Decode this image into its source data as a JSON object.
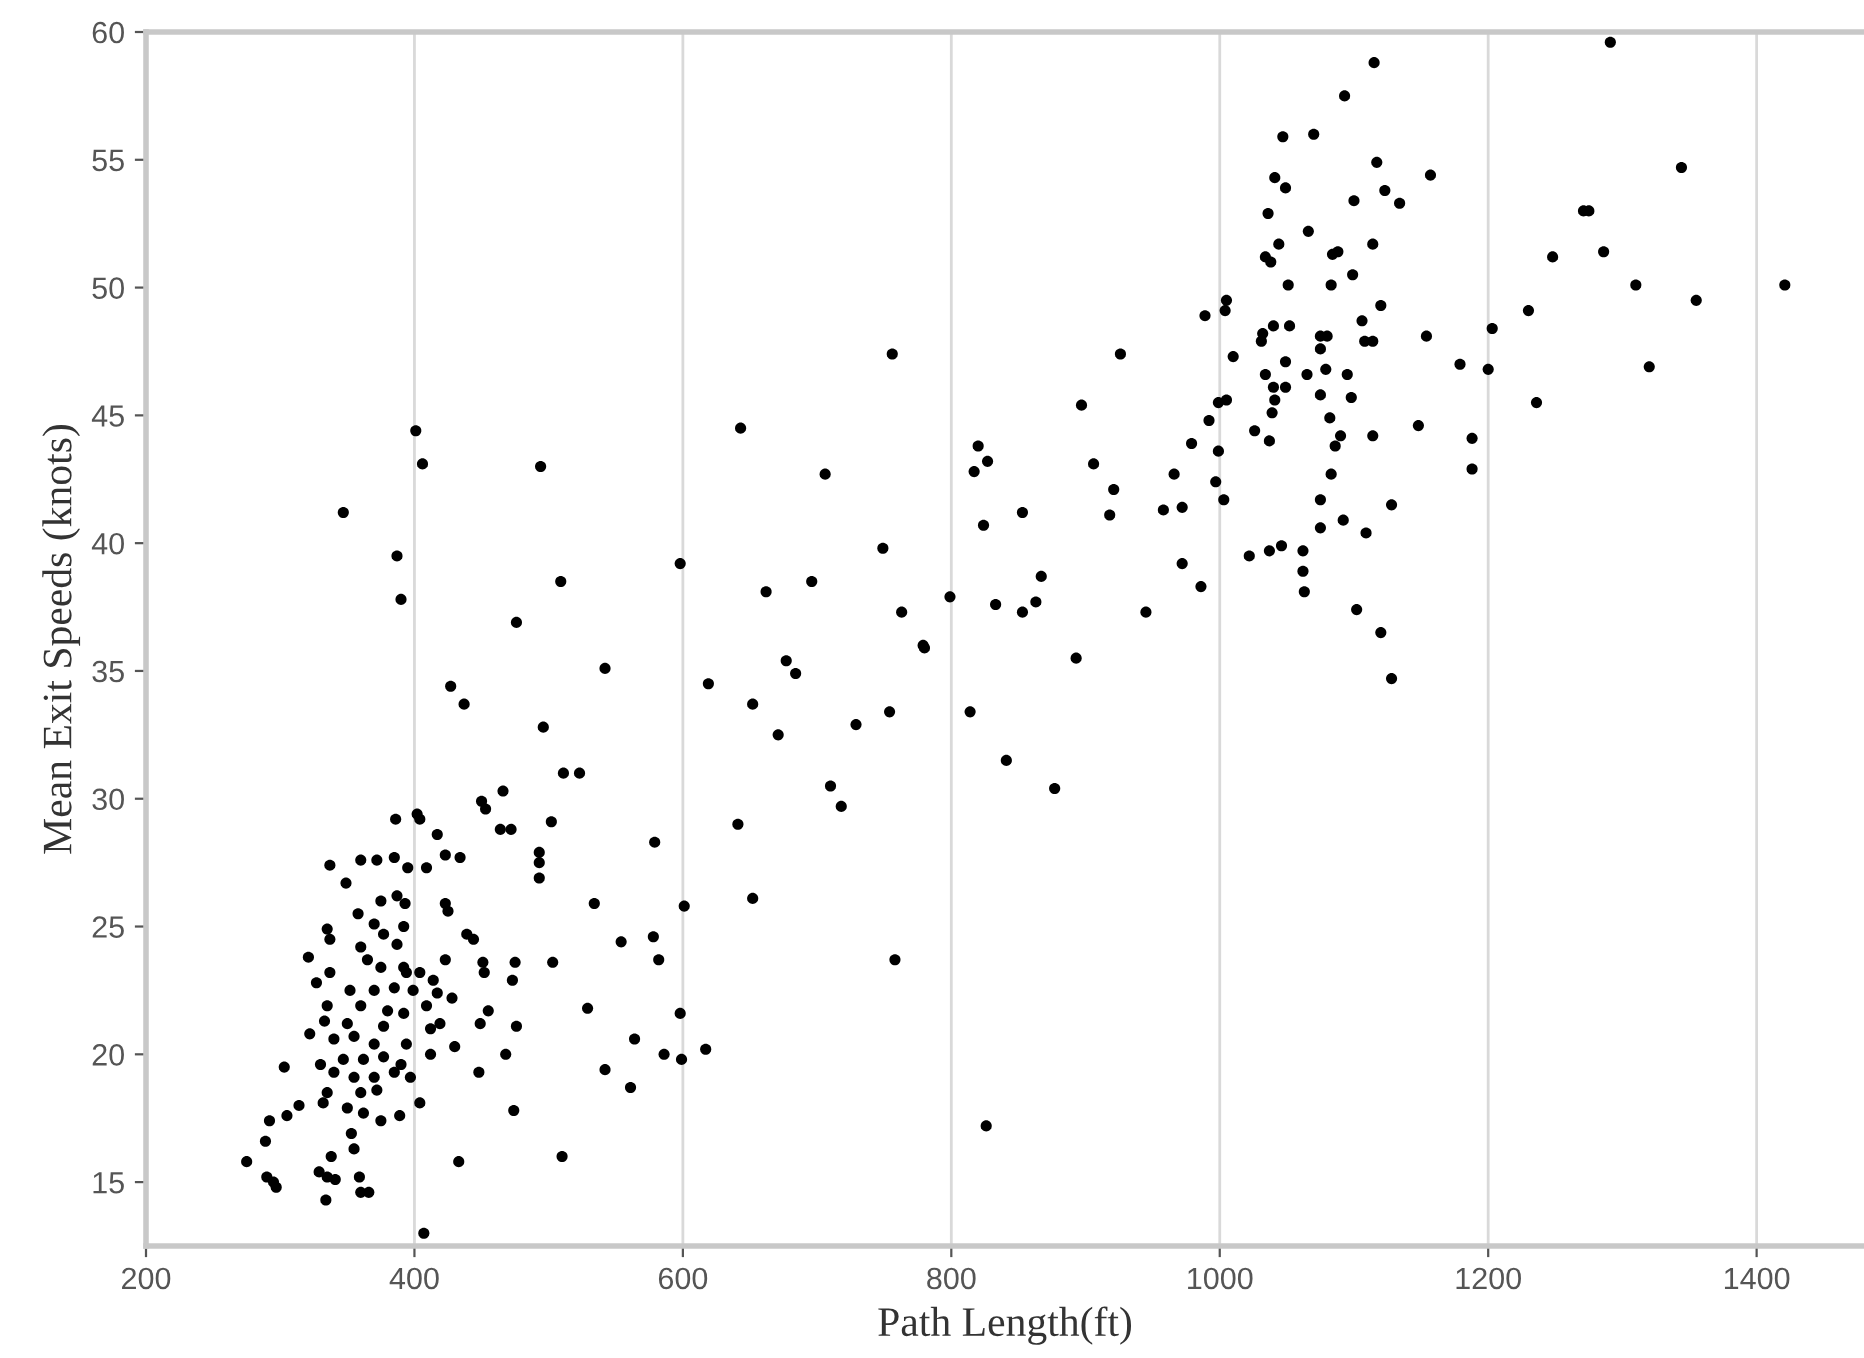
{
  "chart_data": {
    "type": "scatter",
    "xlabel": "Path Length(ft)",
    "ylabel": "Mean Exit Speeds (knots)",
    "xlim": [
      200,
      1480
    ],
    "ylim": [
      12.5,
      60
    ],
    "xticks": [
      200,
      400,
      600,
      800,
      1000,
      1200,
      1400
    ],
    "yticks": [
      15,
      20,
      25,
      30,
      35,
      40,
      45,
      50,
      55,
      60
    ],
    "grid": "x",
    "marker": "circle",
    "series": [
      {
        "color": "#000000",
        "x": [
          347,
          401,
          406,
          387,
          390,
          494,
          509,
          476,
          542,
          643,
          706,
          598,
          662,
          696,
          677,
          684,
          756,
          749,
          763,
          779,
          1291,
          1115,
          1093,
          1047,
          1070,
          1117,
          1157,
          1041,
          1049,
          1123,
          1134,
          1100,
          1036,
          1066,
          1044,
          1088,
          1084,
          1114,
          1034,
          1038,
          1051,
          1083,
          1099,
          1005,
          1004,
          989,
          1120,
          1010,
          1106,
          1032,
          1040,
          1052,
          1075,
          1080,
          1075,
          1108,
          1114,
          1031,
          1034,
          1049,
          1065,
          1079,
          1095,
          1040,
          1049,
          1075,
          1098,
          1041,
          1005,
          999,
          1039,
          992,
          1082,
          1026,
          1037,
          1090,
          1086,
          1114,
          1148,
          979,
          999,
          1083,
          997,
          1003,
          1075,
          1128,
          1075,
          1092,
          1109,
          966,
          958,
          972,
          972,
          986,
          1022,
          1037,
          1046,
          1062,
          1062,
          1063,
          1102,
          1120,
          1128,
          1154,
          1203,
          1179,
          1200,
          1230,
          1236,
          1248,
          1271,
          1275,
          1286,
          1310,
          1355,
          1320,
          1344,
          1421,
          1188,
          1188,
          906,
          921,
          918,
          897,
          926,
          853,
          824,
          820,
          817,
          827,
          799,
          833,
          853,
          863,
          867,
          945,
          893,
          780,
          427,
          437,
          496,
          511,
          523,
          619,
          652,
          671,
          729,
          754,
          710,
          718,
          641,
          579,
          652,
          601,
          758,
          534,
          554,
          578,
          582,
          529,
          598,
          564,
          586,
          599,
          617,
          542,
          561,
          510,
          502,
          503,
          493,
          493,
          493,
          450,
          453,
          466,
          464,
          472,
          475,
          473,
          476,
          468,
          474,
          448,
          449,
          455,
          451,
          452,
          439,
          444,
          434,
          423,
          417,
          423,
          425,
          423,
          428,
          430,
          433,
          407,
          404,
          412,
          386,
          402,
          404,
          409,
          395,
          385,
          372,
          360,
          337,
          349,
          375,
          387,
          393,
          358,
          370,
          392,
          335,
          337,
          377,
          387,
          360,
          321,
          365,
          375,
          392,
          337,
          394,
          404,
          414,
          327,
          352,
          370,
          385,
          399,
          417,
          335,
          360,
          380,
          392,
          409,
          333,
          350,
          377,
          419,
          322,
          340,
          355,
          370,
          394,
          412,
          330,
          347,
          362,
          377,
          390,
          303,
          340,
          355,
          370,
          385,
          397,
          335,
          360,
          372,
          314,
          332,
          350,
          362,
          375,
          389,
          305,
          292,
          353,
          355,
          289,
          275,
          290,
          295,
          297,
          329,
          338,
          335,
          341,
          334,
          359,
          360,
          366,
          814,
          841,
          877,
          826
        ],
        "values": [
          41.2,
          44.4,
          43.1,
          39.5,
          37.8,
          43.0,
          38.5,
          36.9,
          35.1,
          44.5,
          42.7,
          39.2,
          38.1,
          38.5,
          35.4,
          34.9,
          47.4,
          39.8,
          37.3,
          36.0,
          59.6,
          58.8,
          57.5,
          55.9,
          56.0,
          54.9,
          54.4,
          54.3,
          53.9,
          53.8,
          53.3,
          53.4,
          52.9,
          52.2,
          51.7,
          51.4,
          51.3,
          51.7,
          51.2,
          51.0,
          50.1,
          50.1,
          50.5,
          49.5,
          49.1,
          48.9,
          49.3,
          47.3,
          48.7,
          48.2,
          48.5,
          48.5,
          48.1,
          48.1,
          47.6,
          47.9,
          47.9,
          47.9,
          46.6,
          47.1,
          46.6,
          46.8,
          46.6,
          46.1,
          46.1,
          45.8,
          45.7,
          45.6,
          45.6,
          45.5,
          45.1,
          44.8,
          44.9,
          44.4,
          44.0,
          44.2,
          43.8,
          44.2,
          44.6,
          43.9,
          43.6,
          42.7,
          42.4,
          41.7,
          41.7,
          41.5,
          40.6,
          40.9,
          40.4,
          42.7,
          41.3,
          41.4,
          39.2,
          38.3,
          39.5,
          39.7,
          39.9,
          39.7,
          38.9,
          38.1,
          37.4,
          36.5,
          34.7,
          48.1,
          48.4,
          47.0,
          46.8,
          49.1,
          45.5,
          51.2,
          53.0,
          53.0,
          51.4,
          50.1,
          49.5,
          46.9,
          54.7,
          50.1,
          44.1,
          42.9,
          43.1,
          42.1,
          41.1,
          45.4,
          47.4,
          41.2,
          40.7,
          43.8,
          42.8,
          43.2,
          37.9,
          37.6,
          37.3,
          37.7,
          38.7,
          37.3,
          35.5,
          35.9,
          34.4,
          33.7,
          32.8,
          31.0,
          31.0,
          34.5,
          33.7,
          32.5,
          32.9,
          33.4,
          30.5,
          29.7,
          29.0,
          28.3,
          26.1,
          25.8,
          23.7,
          25.9,
          24.4,
          24.6,
          23.7,
          21.8,
          21.6,
          20.6,
          20.0,
          19.8,
          20.2,
          19.4,
          18.7,
          16.0,
          29.1,
          23.6,
          27.9,
          27.5,
          26.9,
          29.9,
          29.6,
          30.3,
          28.8,
          28.8,
          23.6,
          22.9,
          21.1,
          20.0,
          17.8,
          19.3,
          21.2,
          21.7,
          23.6,
          23.2,
          24.7,
          24.5,
          27.7,
          27.8,
          28.6,
          25.9,
          25.6,
          23.7,
          22.2,
          20.3,
          15.8,
          13.0,
          18.1,
          20.0,
          29.2,
          29.4,
          29.2,
          27.3,
          27.3,
          27.7,
          27.6,
          27.6,
          27.4,
          26.7,
          26.0,
          26.2,
          25.9,
          25.5,
          25.1,
          25.0,
          24.9,
          24.5,
          24.7,
          24.3,
          24.2,
          23.8,
          23.7,
          23.4,
          23.4,
          23.2,
          23.2,
          23.2,
          22.9,
          22.8,
          22.5,
          22.5,
          22.6,
          22.5,
          22.4,
          21.9,
          21.9,
          21.7,
          21.6,
          21.9,
          21.3,
          21.2,
          21.1,
          21.2,
          20.8,
          20.6,
          20.7,
          20.4,
          20.4,
          21.0,
          19.6,
          19.8,
          19.8,
          19.9,
          19.6,
          19.5,
          19.3,
          19.1,
          19.1,
          19.3,
          19.1,
          18.5,
          18.5,
          18.6,
          18.0,
          18.1,
          17.9,
          17.7,
          17.4,
          17.6,
          17.6,
          17.4,
          16.9,
          16.3,
          16.6,
          15.8,
          15.2,
          15.0,
          14.8,
          15.4,
          16.0,
          15.2,
          15.1,
          14.3,
          15.2,
          14.6,
          14.6,
          33.4,
          31.5,
          30.4,
          17.2
        ]
      }
    ]
  }
}
